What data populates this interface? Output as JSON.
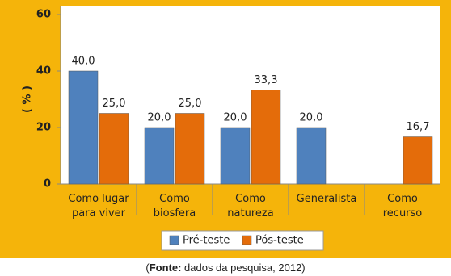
{
  "chart_data": {
    "type": "bar",
    "y_label": "( % )",
    "categories": [
      "Como lugar\npara viver",
      "Como\nbiosfera",
      "Como\nnatureza",
      "Generalista",
      "Como\nrecurso"
    ],
    "series": [
      {
        "name": "Pré-teste",
        "color": "#4f81bd",
        "values": [
          40,
          20,
          20,
          20,
          null
        ],
        "value_labels": [
          "40,0",
          "20,0",
          "20,0",
          "20,0",
          null
        ]
      },
      {
        "name": "Pós-teste",
        "color": "#e46c0a",
        "values": [
          25,
          25,
          33.3,
          null,
          16.7
        ],
        "value_labels": [
          "25,0",
          "25,0",
          "33,3",
          null,
          "16,7"
        ]
      }
    ],
    "ylim": [
      0,
      60
    ],
    "yticks": [
      0,
      20,
      40,
      60
    ],
    "legend": "bottom",
    "background": "#f5b40a"
  },
  "caption": [
    "(",
    "Fonte:",
    " dados da pesquisa, 2012)"
  ]
}
